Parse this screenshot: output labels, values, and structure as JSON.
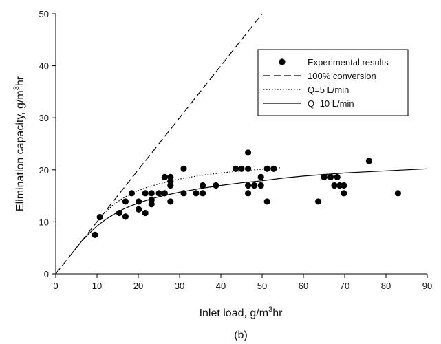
{
  "chart_data": {
    "type": "scatter",
    "panel_label": "(b)",
    "xlabel": {
      "pre": "Inlet load, g/m",
      "sup": "3",
      "post": "hr"
    },
    "ylabel": {
      "pre": "Elimination capacity, g/m",
      "sup": "3",
      "post": "hr"
    },
    "xlim": [
      0,
      90
    ],
    "ylim": [
      0,
      50
    ],
    "xticks": [
      0,
      10,
      20,
      30,
      40,
      50,
      60,
      70,
      80,
      90
    ],
    "yticks": [
      0,
      10,
      20,
      30,
      40,
      50
    ],
    "grid": false,
    "legend_position": "top-right",
    "series": [
      {
        "name": "Experimental results",
        "kind": "points",
        "points": [
          [
            9.5,
            7.5
          ],
          [
            10.7,
            10.9
          ],
          [
            15.4,
            11.7
          ],
          [
            16.9,
            11.0
          ],
          [
            16.9,
            13.9
          ],
          [
            18.4,
            15.5
          ],
          [
            20.1,
            12.4
          ],
          [
            20.1,
            13.9
          ],
          [
            21.7,
            11.7
          ],
          [
            21.7,
            15.5
          ],
          [
            23.2,
            13.4
          ],
          [
            23.2,
            14.2
          ],
          [
            23.2,
            15.5
          ],
          [
            25.0,
            15.5
          ],
          [
            26.4,
            15.5
          ],
          [
            26.4,
            18.6
          ],
          [
            27.8,
            13.9
          ],
          [
            27.8,
            17.0
          ],
          [
            27.8,
            17.8
          ],
          [
            27.8,
            18.6
          ],
          [
            31.0,
            15.5
          ],
          [
            31.0,
            20.2
          ],
          [
            34.0,
            15.5
          ],
          [
            35.6,
            15.5
          ],
          [
            35.6,
            17.0
          ],
          [
            38.8,
            17.0
          ],
          [
            43.6,
            20.2
          ],
          [
            45.0,
            20.2
          ],
          [
            46.6,
            15.5
          ],
          [
            46.6,
            17.0
          ],
          [
            46.6,
            20.2
          ],
          [
            46.6,
            23.3
          ],
          [
            48.1,
            17.0
          ],
          [
            49.7,
            17.0
          ],
          [
            49.7,
            18.6
          ],
          [
            51.2,
            13.9
          ],
          [
            51.2,
            20.2
          ],
          [
            52.8,
            20.2
          ],
          [
            63.6,
            13.9
          ],
          [
            65.0,
            18.6
          ],
          [
            66.6,
            18.6
          ],
          [
            67.5,
            17.0
          ],
          [
            68.2,
            18.6
          ],
          [
            68.8,
            17.0
          ],
          [
            69.8,
            15.5
          ],
          [
            69.8,
            17.0
          ],
          [
            75.9,
            21.7
          ],
          [
            82.9,
            15.5
          ]
        ]
      },
      {
        "name": "100% conversion",
        "kind": "line",
        "dash": "dashed",
        "points": [
          [
            0,
            0
          ],
          [
            50,
            50
          ]
        ]
      },
      {
        "name": "Q=5 L/min",
        "kind": "line",
        "dash": "dotted",
        "points": [
          [
            10.7,
            10.9
          ],
          [
            12,
            11.9
          ],
          [
            14,
            13.3
          ],
          [
            16,
            14.4
          ],
          [
            18,
            15.3
          ],
          [
            20,
            16.0
          ],
          [
            22,
            16.6
          ],
          [
            25,
            17.3
          ],
          [
            28,
            17.9
          ],
          [
            31,
            18.4
          ],
          [
            35,
            18.9
          ],
          [
            40,
            19.4
          ],
          [
            45,
            19.8
          ],
          [
            50,
            20.1
          ],
          [
            54.5,
            20.4
          ]
        ]
      },
      {
        "name": "Q=10 L/min",
        "kind": "line",
        "dash": "solid",
        "points": [
          [
            4,
            4.0
          ],
          [
            6,
            6.0
          ],
          [
            8,
            7.7
          ],
          [
            10,
            9.2
          ],
          [
            12,
            10.4
          ],
          [
            14,
            11.4
          ],
          [
            16,
            12.3
          ],
          [
            18,
            13.0
          ],
          [
            20,
            13.6
          ],
          [
            23,
            14.4
          ],
          [
            26,
            15.0
          ],
          [
            30,
            15.7
          ],
          [
            35,
            16.4
          ],
          [
            40,
            17.0
          ],
          [
            45,
            17.5
          ],
          [
            50,
            17.9
          ],
          [
            55,
            18.4
          ],
          [
            60,
            18.8
          ],
          [
            65,
            19.1
          ],
          [
            70,
            19.4
          ],
          [
            75,
            19.6
          ],
          [
            80,
            19.8
          ],
          [
            85,
            20.0
          ],
          [
            90,
            20.2
          ]
        ]
      }
    ]
  }
}
